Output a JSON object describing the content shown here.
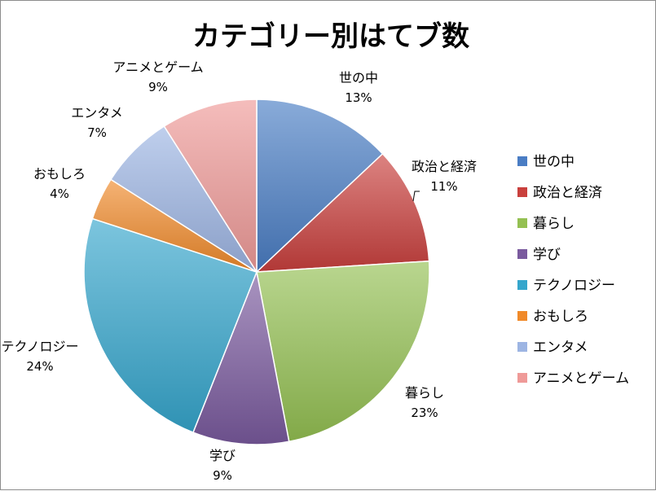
{
  "chart_data": {
    "type": "pie",
    "title": "カテゴリー別はてブ数",
    "legend_position": "right",
    "slices": [
      {
        "name": "世の中",
        "value": 13,
        "label": "13%",
        "color": "#4a7dc4"
      },
      {
        "name": "政治と経済",
        "value": 11,
        "label": "11%",
        "color": "#c9403d"
      },
      {
        "name": "暮らし",
        "value": 23,
        "label": "23%",
        "color": "#94c052"
      },
      {
        "name": "学び",
        "value": 9,
        "label": "9%",
        "color": "#7a5a9e"
      },
      {
        "name": "テクノロジー",
        "value": 24,
        "label": "24%",
        "color": "#35a6cc"
      },
      {
        "name": "おもしろ",
        "value": 4,
        "label": "4%",
        "color": "#f08a2a"
      },
      {
        "name": "エンタメ",
        "value": 7,
        "label": "7%",
        "color": "#9db5e3"
      },
      {
        "name": "アニメとゲーム",
        "value": 9,
        "label": "9%",
        "color": "#ef9a98"
      }
    ]
  }
}
